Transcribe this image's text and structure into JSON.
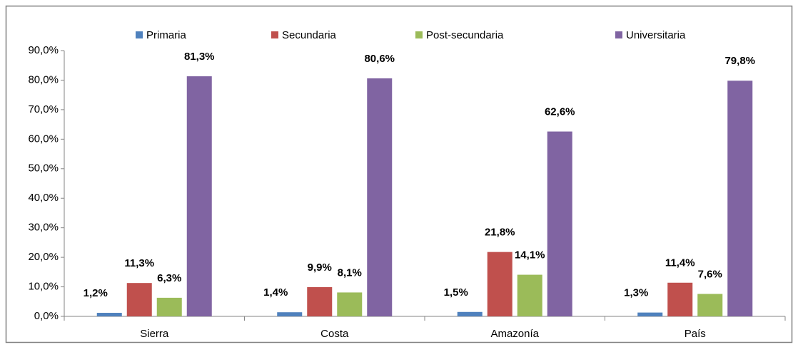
{
  "chart_data": {
    "type": "bar",
    "categories": [
      "Sierra",
      "Costa",
      "Amazonía",
      "País"
    ],
    "series": [
      {
        "name": "Primaria",
        "color": "#4f81bd",
        "values": [
          1.2,
          1.4,
          1.5,
          1.3
        ],
        "value_labels": [
          "1,2%",
          "1,4%",
          "1,5%",
          "1,3%"
        ]
      },
      {
        "name": "Secundaria",
        "color": "#c0504d",
        "values": [
          11.3,
          9.9,
          21.8,
          11.4
        ],
        "value_labels": [
          "11,3%",
          "9,9%",
          "21,8%",
          "11,4%"
        ]
      },
      {
        "name": "Post-secundaria",
        "color": "#9bbb59",
        "values": [
          6.3,
          8.1,
          14.1,
          7.6
        ],
        "value_labels": [
          "6,3%",
          "8,1%",
          "14,1%",
          "7,6%"
        ]
      },
      {
        "name": "Universitaria",
        "color": "#8064a2",
        "values": [
          81.3,
          80.6,
          62.6,
          79.8
        ],
        "value_labels": [
          "81,3%",
          "80,6%",
          "62,6%",
          "79,8%"
        ]
      }
    ],
    "ylim": [
      0,
      90
    ],
    "yticks": [
      {
        "value": 0,
        "label": "0,0%"
      },
      {
        "value": 10,
        "label": "10,0%"
      },
      {
        "value": 20,
        "label": "20,0%"
      },
      {
        "value": 30,
        "label": "30,0%"
      },
      {
        "value": 40,
        "label": "40,0%"
      },
      {
        "value": 50,
        "label": "50,0%"
      },
      {
        "value": 60,
        "label": "60,0%"
      },
      {
        "value": 70,
        "label": "70,0%"
      },
      {
        "value": 80,
        "label": "80,0%"
      },
      {
        "value": 90,
        "label": "90,0%"
      }
    ],
    "legend": "top",
    "grid": false
  }
}
